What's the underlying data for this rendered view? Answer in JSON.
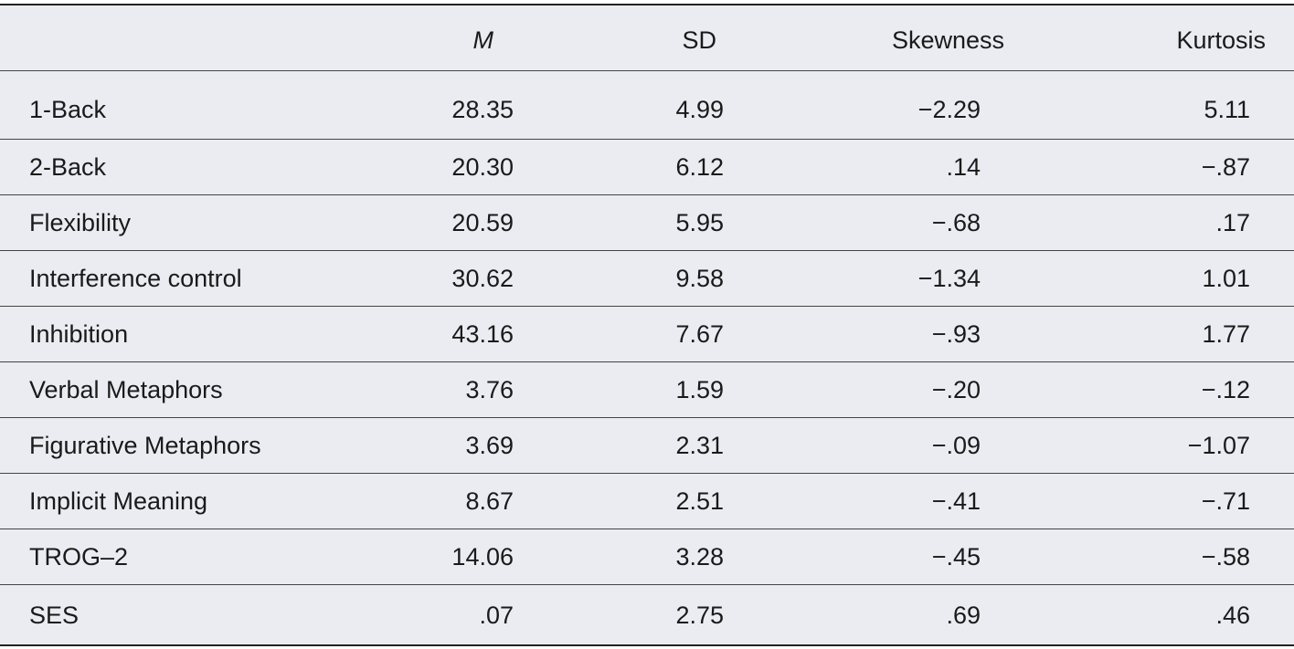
{
  "table": {
    "header": [
      "",
      "M",
      "SD",
      "Skewness",
      "Kurtosis"
    ],
    "rows": [
      [
        "1-Back",
        "28.35",
        "4.99",
        "−2.29",
        "5.11"
      ],
      [
        "2-Back",
        "20.30",
        "6.12",
        ".14",
        "−.87"
      ],
      [
        "Flexibility",
        "20.59",
        "5.95",
        "−.68",
        ".17"
      ],
      [
        "Interference control",
        "30.62",
        "9.58",
        "−1.34",
        "1.01"
      ],
      [
        "Inhibition",
        "43.16",
        "7.67",
        "−.93",
        "1.77"
      ],
      [
        "Verbal Metaphors",
        "3.76",
        "1.59",
        "−.20",
        "−.12"
      ],
      [
        "Figurative Metaphors",
        "3.69",
        "2.31",
        "−.09",
        "−1.07"
      ],
      [
        "Implicit Meaning",
        "8.67",
        "2.51",
        "−.41",
        "−.71"
      ],
      [
        "TROG–2",
        "14.06",
        "3.28",
        "−.45",
        "−.58"
      ],
      [
        "SES",
        ".07",
        "2.75",
        ".69",
        ".46"
      ]
    ]
  }
}
